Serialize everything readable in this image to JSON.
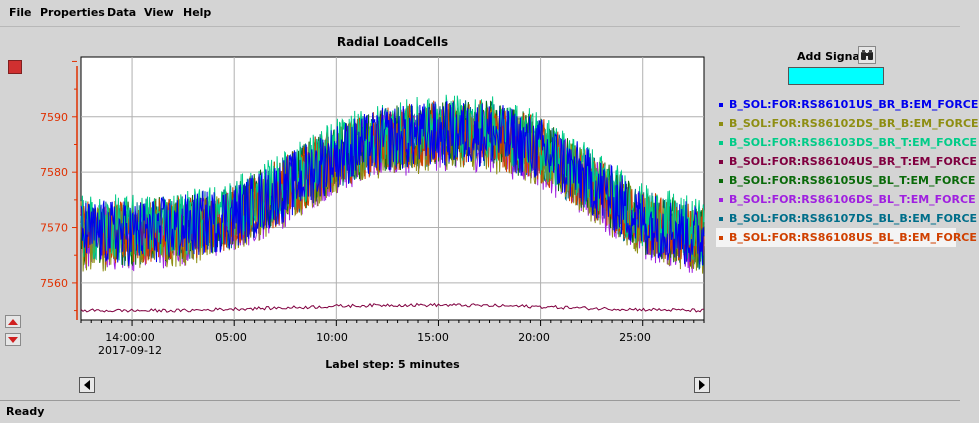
{
  "menu": [
    {
      "label": "File"
    },
    {
      "label": "Properties"
    },
    {
      "label": "Data"
    },
    {
      "label": "View"
    },
    {
      "label": "Help"
    }
  ],
  "status_text": "Ready",
  "add_signal_label": "Add Signal",
  "accent_color": "#00ffff",
  "chart_data": {
    "type": "line",
    "title": "Radial LoadCells",
    "xlabel": "Label step: 5 minutes",
    "ylabel": "",
    "x_ticks": [
      "14:00:00",
      "05:00",
      "10:00",
      "15:00",
      "20:00",
      "25:00"
    ],
    "x_date_label": "2017-09-12",
    "x_minutes_range": [
      -2.5,
      28
    ],
    "y_ticks": [
      7560,
      7570,
      7580,
      7590
    ],
    "ylim": [
      7553.3,
      7600.8
    ],
    "grid": true,
    "legend_position": "right",
    "x_sample_minutes": [
      -2.5,
      0,
      2.5,
      5,
      7.5,
      10,
      12.5,
      15,
      17.5,
      20,
      22.5,
      25,
      28
    ],
    "series": [
      {
        "name": "B_SOL:FOR:RS86101US_BR_B:EM_FORCE",
        "color": "#0000ee",
        "values": [
          7569,
          7569,
          7570,
          7572,
          7577,
          7583,
          7586,
          7587,
          7587,
          7584,
          7578,
          7571,
          7568
        ],
        "spread": 6
      },
      {
        "name": "B_SOL:FOR:RS86102DS_BR_B:EM_FORCE",
        "color": "#8e8e12",
        "values": [
          7568,
          7568,
          7569,
          7571,
          7576,
          7582,
          7585,
          7586,
          7586,
          7583,
          7577,
          7570,
          7567
        ],
        "spread": 6
      },
      {
        "name": "B_SOL:FOR:RS86103DS_BR_T:EM_FORCE",
        "color": "#00cc88",
        "values": [
          7570,
          7570,
          7571,
          7573,
          7578,
          7584,
          7587,
          7588,
          7588,
          7585,
          7579,
          7572,
          7569
        ],
        "spread": 6
      },
      {
        "name": "B_SOL:FOR:RS86104US_BR_T:EM_FORCE",
        "color": "#800040",
        "values": [
          7555,
          7555,
          7555,
          7555.3,
          7555.5,
          7555.8,
          7556,
          7556,
          7555.9,
          7555.7,
          7555.4,
          7555.2,
          7555
        ],
        "spread": 0.3
      },
      {
        "name": "B_SOL:FOR:RS86105US_BL_T:EM_FORCE",
        "color": "#0a6a0a",
        "values": [
          7569,
          7569,
          7570,
          7572,
          7577,
          7583,
          7586,
          7587,
          7587,
          7584,
          7578,
          7571,
          7568
        ],
        "spread": 6
      },
      {
        "name": "B_SOL:FOR:RS86106DS_BL_T:EM_FORCE",
        "color": "#a020e0",
        "values": [
          7568,
          7568,
          7569,
          7571,
          7576,
          7582,
          7585,
          7586,
          7586,
          7583,
          7577,
          7570,
          7567
        ],
        "spread": 6
      },
      {
        "name": "B_SOL:FOR:RS86107DS_BL_B:EM_FORCE",
        "color": "#006e8a",
        "values": [
          7569,
          7569,
          7570,
          7572,
          7577,
          7583,
          7586,
          7587,
          7587,
          7584,
          7578,
          7571,
          7568
        ],
        "spread": 6
      },
      {
        "name": "B_SOL:FOR:RS86108US_BL_B:EM_FORCE",
        "color": "#d04000",
        "values": [
          7569,
          7569,
          7570,
          7572,
          7577,
          7583,
          7586,
          7587,
          7587,
          7584,
          7578,
          7571,
          7568
        ],
        "spread": 6
      }
    ]
  }
}
